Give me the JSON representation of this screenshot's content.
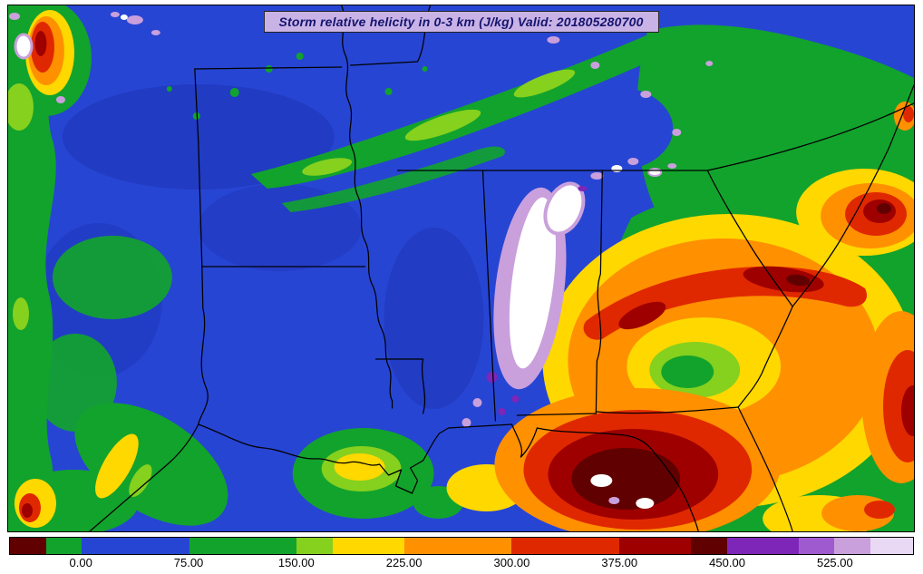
{
  "title": {
    "text": "Storm relative helicity in 0-3 km (J/kg) Valid: 201805280700",
    "bg": "#c9b3e6",
    "color": "#14146e"
  },
  "colorbar": {
    "range": [
      -50,
      580
    ],
    "segments": [
      {
        "from": -50,
        "to": -25,
        "color": "#600000"
      },
      {
        "from": -25,
        "to": 0,
        "color": "#12a32c"
      },
      {
        "from": 0,
        "to": 75,
        "color": "#2745d3"
      },
      {
        "from": 75,
        "to": 150,
        "color": "#12a32c"
      },
      {
        "from": 150,
        "to": 175,
        "color": "#86d01e"
      },
      {
        "from": 175,
        "to": 225,
        "color": "#ffd800"
      },
      {
        "from": 225,
        "to": 300,
        "color": "#ff9000"
      },
      {
        "from": 300,
        "to": 375,
        "color": "#e02800"
      },
      {
        "from": 375,
        "to": 425,
        "color": "#9e0000"
      },
      {
        "from": 425,
        "to": 450,
        "color": "#600000"
      },
      {
        "from": 450,
        "to": 500,
        "color": "#7d26b8"
      },
      {
        "from": 500,
        "to": 525,
        "color": "#a05ad0"
      },
      {
        "from": 525,
        "to": 550,
        "color": "#c9a0dc"
      },
      {
        "from": 550,
        "to": 580,
        "color": "#e9d9f4"
      }
    ],
    "tick_labels": [
      "0.00",
      "75.00",
      "150.00",
      "225.00",
      "300.00",
      "375.00",
      "450.00",
      "525.00"
    ],
    "tick_values": [
      0,
      75,
      150,
      225,
      300,
      375,
      450,
      525
    ]
  },
  "map": {
    "palette": {
      "low_blue": "#2745d3",
      "green": "#12a32c",
      "light_green": "#86d01e",
      "yellow": "#ffd800",
      "orange": "#ff9000",
      "red": "#e02800",
      "dark_red": "#9e0000",
      "maroon": "#600000",
      "purple": "#7d26b8",
      "lavender": "#c9a0dc",
      "extreme_white": "#ffffff",
      "border": "#000000"
    }
  }
}
